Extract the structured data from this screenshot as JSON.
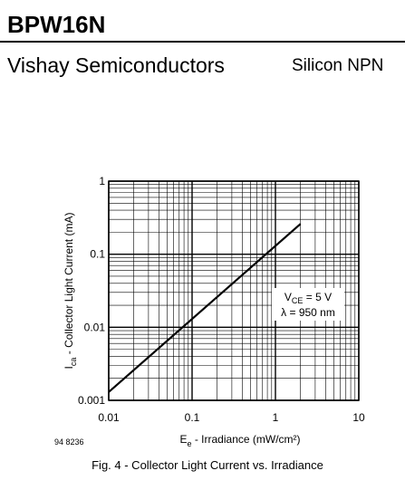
{
  "header": {
    "part": "BPW16N",
    "company": "Vishay Semiconductors",
    "product": "Silicon NPN"
  },
  "chart_data": {
    "type": "line",
    "x_label": {
      "main": "E",
      "sub": "e",
      "rest": " - Irradiance (mW/cm²)"
    },
    "y_label": {
      "main": "I",
      "sub": "ca",
      "rest": " - Collector Light Current (mA)"
    },
    "annotation": {
      "line1_main": "V",
      "line1_sub": "CE",
      "line1_rest": " = 5 V",
      "line2": "λ = 950 nm"
    },
    "figure_code": "94 8236",
    "caption": "Fig. 4 - Collector Light Current vs. Irradiance",
    "log_x": true,
    "log_y": true,
    "grid": true,
    "xlim": [
      0.01,
      10
    ],
    "ylim": [
      0.001,
      1
    ],
    "xticks": [
      0.01,
      0.1,
      1,
      10
    ],
    "yticks": [
      0.001,
      0.01,
      0.1,
      1
    ],
    "xminor": [
      0.02,
      0.03,
      0.04,
      0.05,
      0.06,
      0.07,
      0.08,
      0.09,
      0.2,
      0.3,
      0.4,
      0.5,
      0.6,
      0.7,
      0.8,
      0.9,
      2,
      3,
      4,
      5,
      6,
      7,
      8,
      9
    ],
    "yminor": [
      0.002,
      0.003,
      0.004,
      0.005,
      0.006,
      0.007,
      0.008,
      0.009,
      0.02,
      0.03,
      0.04,
      0.05,
      0.06,
      0.07,
      0.08,
      0.09,
      0.2,
      0.3,
      0.4,
      0.5,
      0.6,
      0.7,
      0.8,
      0.9
    ],
    "series": [
      {
        "color": "#000000",
        "x": [
          0.01,
          2
        ],
        "values": [
          0.0013,
          0.26
        ]
      }
    ]
  }
}
